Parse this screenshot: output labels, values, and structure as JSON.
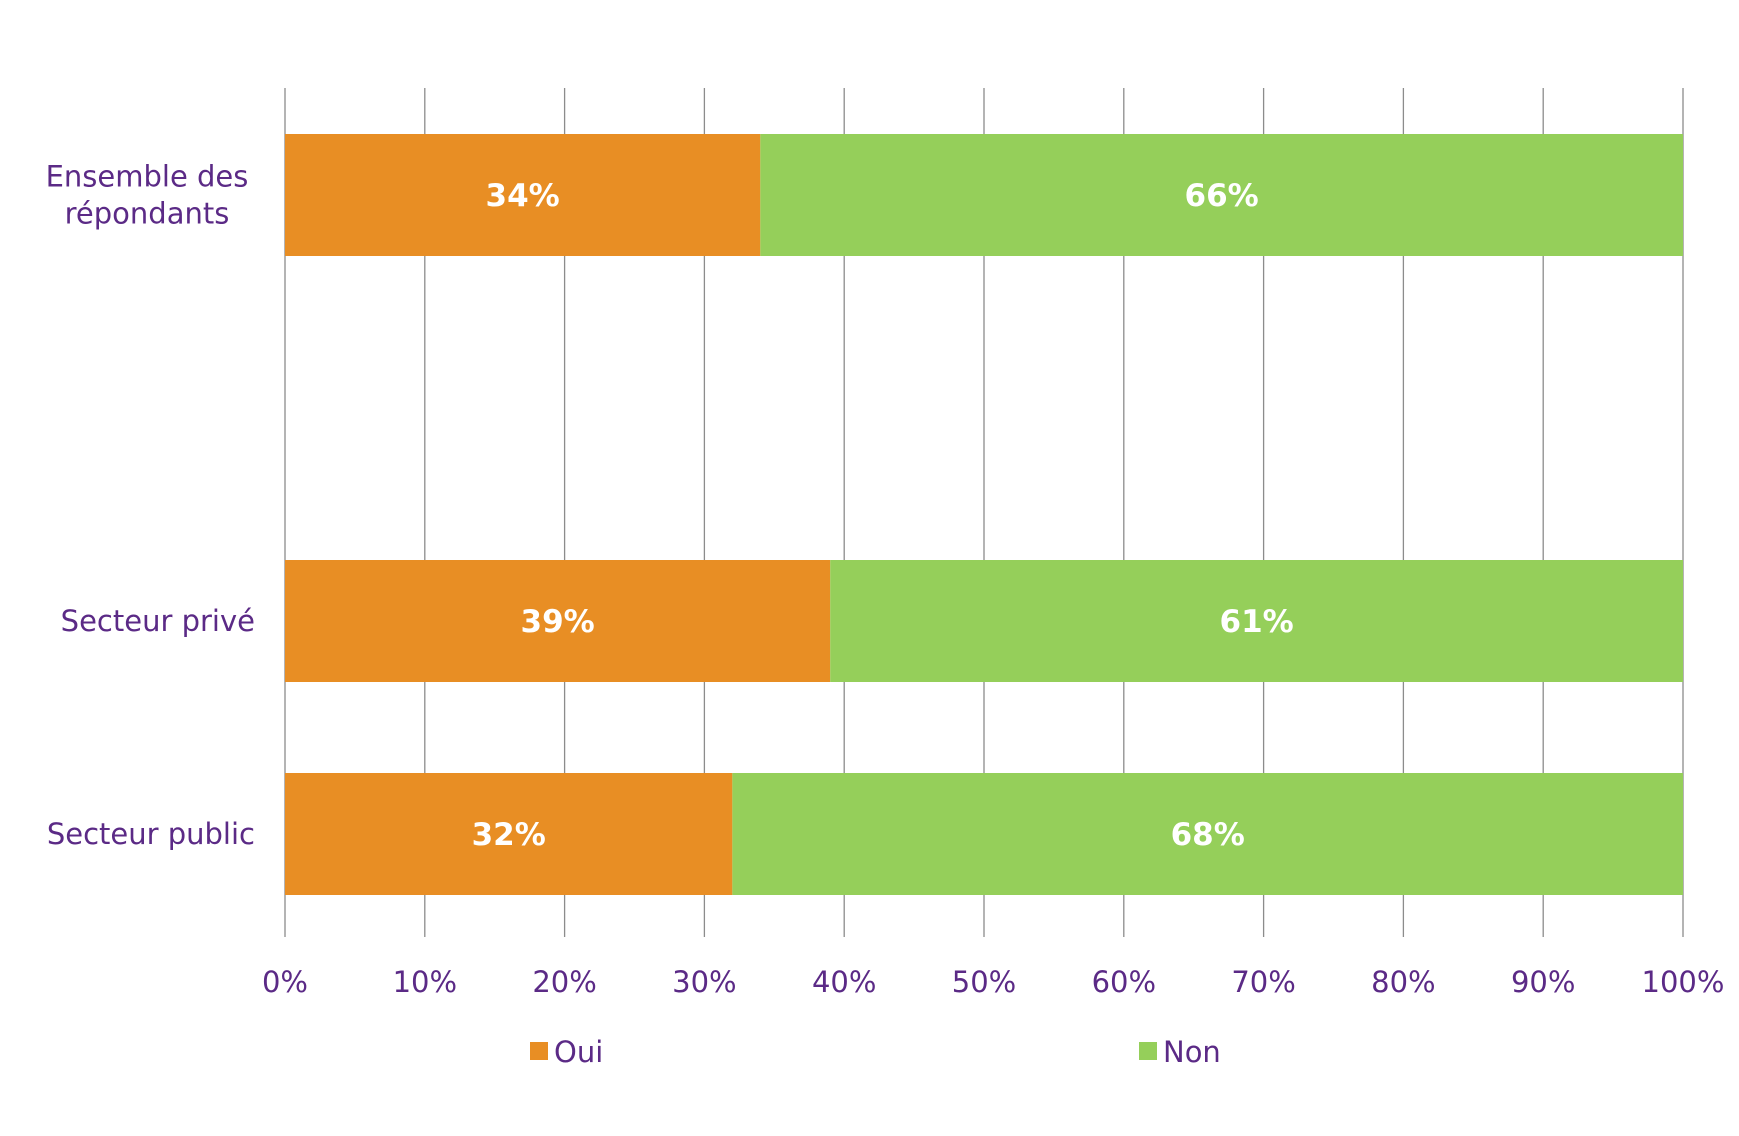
{
  "chart_data": {
    "type": "bar",
    "orientation": "horizontal",
    "stacked": true,
    "categories": [
      "Ensemble des répondants",
      "Secteur privé",
      "Secteur public"
    ],
    "series": [
      {
        "name": "Oui",
        "color": "#E88E24",
        "values": [
          34,
          39,
          32
        ],
        "labels": [
          "34%",
          "39%",
          "32%"
        ]
      },
      {
        "name": "Non",
        "color": "#95CF5A",
        "values": [
          66,
          61,
          68
        ],
        "labels": [
          "66%",
          "61%",
          "68%"
        ]
      }
    ],
    "xlim": [
      0,
      100
    ],
    "xticks": [
      "0%",
      "10%",
      "20%",
      "30%",
      "40%",
      "50%",
      "60%",
      "70%",
      "80%",
      "90%",
      "100%"
    ],
    "grid": "vertical",
    "legend_position": "bottom",
    "label_color": "#5B2A86",
    "grid_color": "#8C8C8C"
  }
}
